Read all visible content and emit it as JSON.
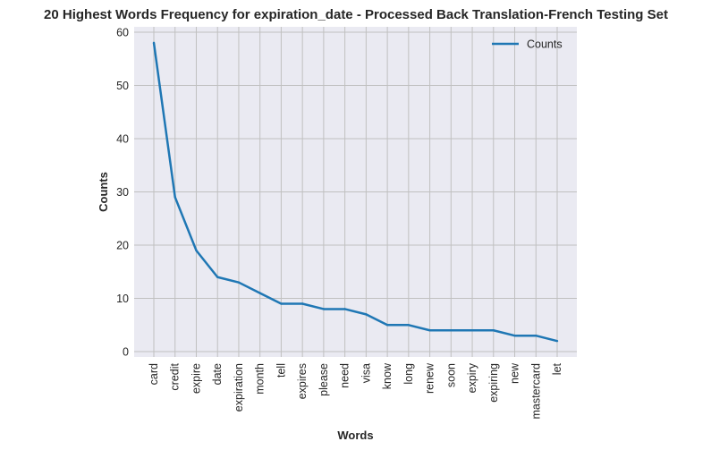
{
  "chart_data": {
    "type": "line",
    "title": "20 Highest Words Frequency for expiration_date - Processed Back Translation-French Testing Set",
    "xlabel": "Words",
    "ylabel": "Counts",
    "categories": [
      "card",
      "credit",
      "expire",
      "date",
      "expiration",
      "month",
      "tell",
      "expires",
      "please",
      "need",
      "visa",
      "know",
      "long",
      "renew",
      "soon",
      "expiry",
      "expiring",
      "new",
      "mastercard",
      "let"
    ],
    "series": [
      {
        "name": "Counts",
        "values": [
          58,
          29,
          19,
          14,
          13,
          11,
          9,
          9,
          8,
          8,
          7,
          5,
          5,
          4,
          4,
          4,
          4,
          3,
          3,
          2
        ]
      }
    ],
    "ylim": [
      -1,
      61
    ],
    "yticks": [
      0,
      10,
      20,
      30,
      40,
      50,
      60
    ],
    "grid": true,
    "legend_position": "top-right",
    "colors": {
      "line": "#1f77b4",
      "plot_bg": "#eaeaf2",
      "grid": "#c0c0c0"
    }
  }
}
